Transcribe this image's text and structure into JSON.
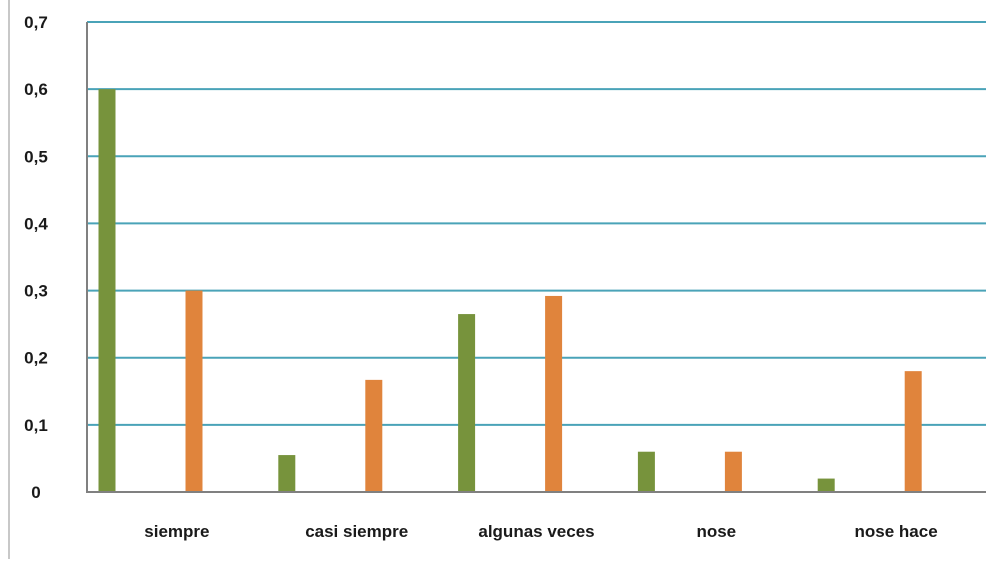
{
  "chart_data": {
    "type": "bar",
    "title": "",
    "xlabel": "",
    "ylabel": "",
    "categories": [
      "siempre",
      "casi siempre",
      "algunas veces",
      "nose",
      "nose hace"
    ],
    "series": [
      {
        "values": [
          0.6,
          0.055,
          0.265,
          0.06,
          0.02
        ],
        "color": "#77933c"
      },
      {
        "values": [
          0.3,
          0.167,
          0.292,
          0.06,
          0.18
        ],
        "color": "#e0843c"
      }
    ],
    "ylim": [
      0,
      0.7
    ],
    "yticks": [
      "0",
      "0,1",
      "0,2",
      "0,3",
      "0,4",
      "0,5",
      "0,6",
      "0,7"
    ],
    "grid": true,
    "gridline_color": "#4aa3b8",
    "axis_color": "#808080",
    "legend": "none"
  }
}
